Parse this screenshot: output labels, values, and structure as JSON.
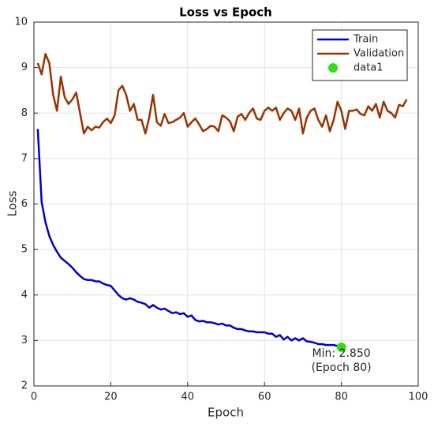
{
  "chart_data": {
    "type": "line",
    "title": "Loss vs Epoch",
    "x_label": "Epoch",
    "y_label": "Loss",
    "x": [
      1,
      2,
      3,
      4,
      5,
      6,
      7,
      8,
      9,
      10,
      11,
      12,
      13,
      14,
      15,
      16,
      17,
      18,
      19,
      20,
      21,
      22,
      23,
      24,
      25,
      26,
      27,
      28,
      29,
      30,
      31,
      32,
      33,
      34,
      35,
      36,
      37,
      38,
      39,
      40,
      41,
      42,
      43,
      44,
      45,
      46,
      47,
      48,
      49,
      50,
      51,
      52,
      53,
      54,
      55,
      56,
      57,
      58,
      59,
      60,
      61,
      62,
      63,
      64,
      65,
      66,
      67,
      68,
      69,
      70,
      71,
      72,
      73,
      74,
      75,
      76,
      77,
      78,
      79,
      80,
      81,
      82,
      83,
      84,
      85,
      86,
      87,
      88,
      89,
      90,
      91,
      92,
      93,
      94,
      95,
      96,
      97
    ],
    "series": [
      {
        "name": "Train",
        "color": "#0000cc",
        "values": [
          7.65,
          6.05,
          5.6,
          5.3,
          5.1,
          4.95,
          4.82,
          4.75,
          4.68,
          4.6,
          4.5,
          4.42,
          4.35,
          4.33,
          4.33,
          4.3,
          4.3,
          4.25,
          4.22,
          4.2,
          4.1,
          4.0,
          3.93,
          3.9,
          3.93,
          3.9,
          3.85,
          3.83,
          3.8,
          3.72,
          3.78,
          3.72,
          3.68,
          3.7,
          3.65,
          3.6,
          3.62,
          3.58,
          3.6,
          3.52,
          3.55,
          3.45,
          3.42,
          3.43,
          3.4,
          3.4,
          3.38,
          3.35,
          3.37,
          3.33,
          3.33,
          3.28,
          3.25,
          3.25,
          3.22,
          3.2,
          3.2,
          3.18,
          3.18,
          3.18,
          3.15,
          3.15,
          3.08,
          3.12,
          3.02,
          3.08,
          3.0,
          3.05,
          3.0,
          3.05,
          2.98,
          2.97,
          2.95,
          2.92,
          2.92,
          2.9,
          2.9,
          2.9,
          2.88,
          2.85,
          null,
          null,
          null,
          null,
          null,
          null,
          null,
          null,
          null,
          null,
          null,
          null,
          null,
          null,
          null,
          null,
          null
        ]
      },
      {
        "name": "Validation",
        "color": "#993300",
        "values": [
          9.1,
          8.85,
          9.3,
          9.1,
          8.4,
          8.05,
          8.8,
          8.35,
          8.2,
          8.3,
          8.45,
          8.0,
          7.55,
          7.7,
          7.62,
          7.7,
          7.68,
          7.8,
          7.88,
          7.78,
          7.95,
          8.5,
          8.6,
          8.4,
          8.05,
          8.2,
          7.85,
          7.85,
          7.55,
          7.9,
          8.4,
          7.8,
          7.72,
          7.98,
          7.78,
          7.8,
          7.85,
          7.9,
          8.0,
          7.7,
          7.8,
          7.88,
          7.75,
          7.6,
          7.65,
          7.72,
          7.7,
          7.6,
          7.95,
          7.9,
          7.82,
          7.6,
          7.92,
          7.98,
          7.85,
          8.0,
          8.1,
          7.88,
          7.85,
          8.05,
          8.12,
          8.05,
          8.12,
          7.85,
          8.0,
          8.1,
          8.05,
          7.85,
          8.1,
          7.55,
          7.9,
          8.05,
          8.1,
          7.85,
          7.7,
          7.95,
          7.6,
          7.85,
          8.25,
          8.05,
          7.65,
          8.05,
          8.05,
          8.08,
          7.98,
          7.95,
          8.15,
          8.05,
          8.2,
          7.9,
          8.25,
          8.05,
          8.0,
          7.9,
          8.18,
          8.15,
          8.3
        ]
      }
    ],
    "points": {
      "name": "data1",
      "color": "#33dd11",
      "x": [
        80
      ],
      "y": [
        2.85
      ]
    },
    "annotation": [
      "Min: 2.850",
      "(Epoch 80)"
    ],
    "xlim": [
      0,
      100
    ],
    "xticks": [
      0,
      20,
      40,
      60,
      80,
      100
    ],
    "ylim": [
      2,
      10
    ],
    "yticks": [
      2,
      3,
      4,
      5,
      6,
      7,
      8,
      9,
      10
    ],
    "grid": true,
    "legend": "top-right"
  }
}
